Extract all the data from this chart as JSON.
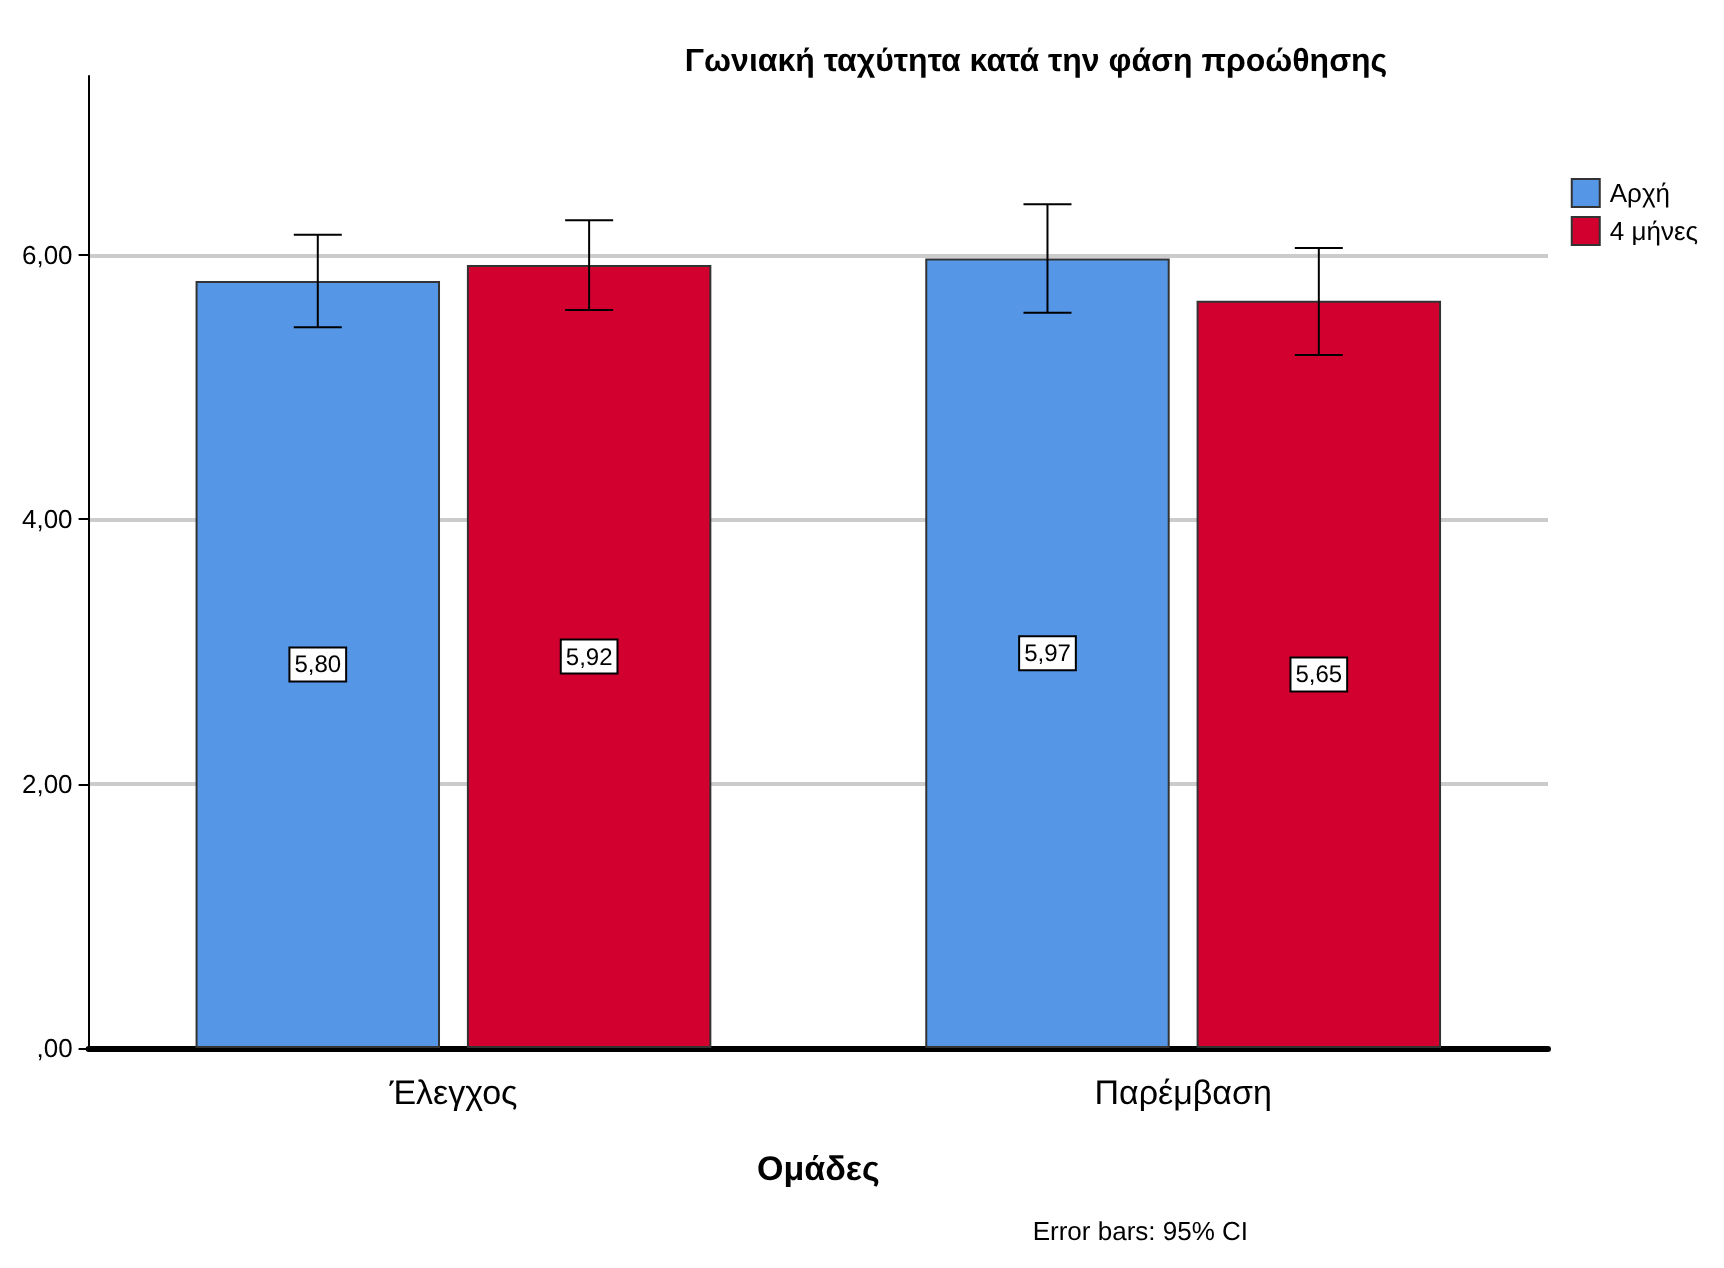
{
  "chart_data": {
    "type": "bar",
    "title": "Γωνιακή ταχύτητα κατά την φάση προώθησης",
    "xlabel": "Ομάδες",
    "categories": [
      "Έλεγχος",
      "Παρέμβαση"
    ],
    "series": [
      {
        "name": "Αρχή",
        "color": "#5596e6",
        "values": [
          5.8,
          5.97
        ],
        "errors": [
          [
            5.45,
            6.15
          ],
          [
            5.56,
            6.38
          ]
        ],
        "value_labels": [
          "5,80",
          "5,97"
        ]
      },
      {
        "name": "4 μήνες",
        "color": "#d2002e",
        "values": [
          5.92,
          5.65
        ],
        "errors": [
          [
            5.58,
            6.26
          ],
          [
            5.24,
            6.05
          ]
        ],
        "value_labels": [
          "5,92",
          "5,65"
        ]
      }
    ],
    "ylim": [
      0,
      7.35
    ],
    "yticks": [
      {
        "value": 0,
        "label": ",00"
      },
      {
        "value": 2,
        "label": "2,00"
      },
      {
        "value": 4,
        "label": "4,00"
      },
      {
        "value": 6,
        "label": "6,00"
      }
    ],
    "grid": "y",
    "legend": "top right",
    "annotations": [
      "Error bars: 95% CI"
    ]
  }
}
